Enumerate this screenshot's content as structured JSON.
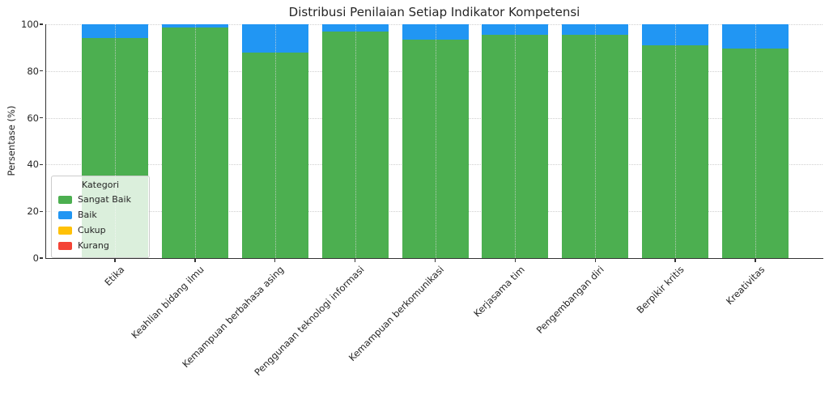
{
  "title": "Distribusi Penilaian Setiap Indikator Kompetensi",
  "chart_data": {
    "type": "bar",
    "stacked": true,
    "percent_stacked": true,
    "title": "Distribusi Penilaian Setiap Indikator Kompetensi",
    "xlabel": "",
    "ylabel": "Persentase (%)",
    "ylim": [
      0,
      100
    ],
    "yticks": [
      0,
      20,
      40,
      60,
      80,
      100
    ],
    "grid": true,
    "categories": [
      "Etika",
      "Keahlian bidang ilmu",
      "Kemampuan berbahasa asing",
      "Penggunaan teknologi informasi",
      "Kemampuan berkomunikasi",
      "Kerjasama tim",
      "Pengembangan diri",
      "Berpikir kritis",
      "Kreativitas"
    ],
    "series": [
      {
        "name": "Sangat Baik",
        "color": "#4caf50",
        "values": [
          94.0,
          98.5,
          88.0,
          97.0,
          93.5,
          95.5,
          95.5,
          91.0,
          89.5
        ]
      },
      {
        "name": "Baik",
        "color": "#2196f3",
        "values": [
          6.0,
          1.5,
          12.0,
          3.0,
          6.5,
          4.5,
          4.5,
          9.0,
          10.5
        ]
      },
      {
        "name": "Cukup",
        "color": "#ffc107",
        "values": [
          0,
          0,
          0,
          0,
          0,
          0,
          0,
          0,
          0
        ]
      },
      {
        "name": "Kurang",
        "color": "#f44336",
        "values": [
          0,
          0,
          0,
          0,
          0,
          0,
          0,
          0,
          0
        ]
      }
    ],
    "legend": {
      "title": "Kategori",
      "position": "lower left"
    }
  },
  "colors": {
    "background": "#ffffff",
    "axis": "#333333",
    "text": "#262626",
    "grid": "#cfcfcf"
  }
}
